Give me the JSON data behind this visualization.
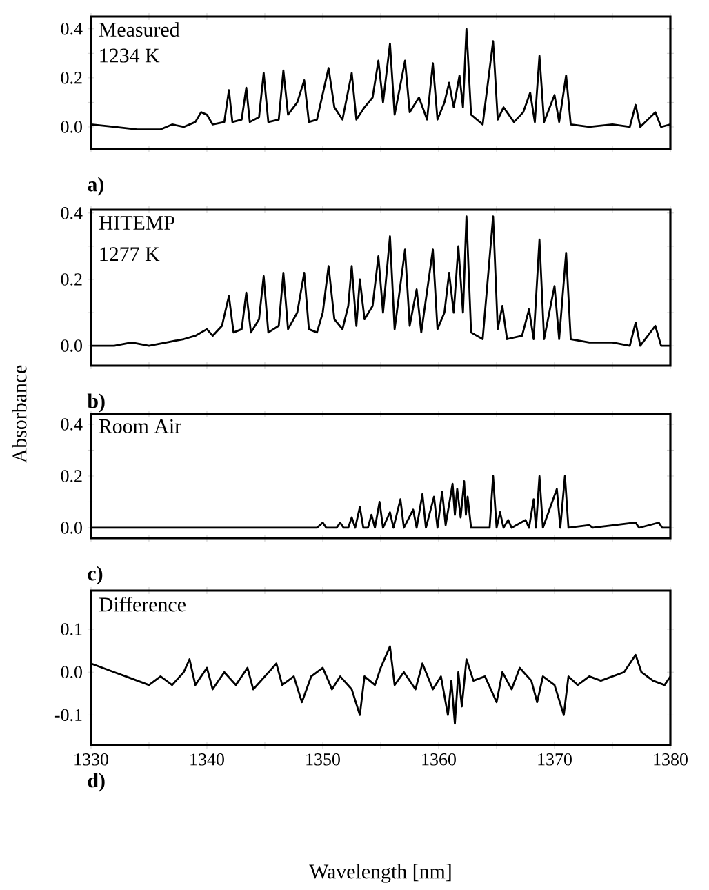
{
  "chart_data": [
    {
      "type": "line",
      "color": "#000000",
      "xlim": [
        1330,
        1380
      ],
      "ylim": [
        -0.09,
        0.45
      ],
      "tick_labels": "y",
      "xticks": [
        {
          "value": 1330,
          "label": null
        },
        {
          "value": 1335,
          "label": null
        },
        {
          "value": 1340,
          "label": null
        },
        {
          "value": 1345,
          "label": null
        },
        {
          "value": 1350,
          "label": null
        },
        {
          "value": 1355,
          "label": null
        },
        {
          "value": 1360,
          "label": null
        },
        {
          "value": 1365,
          "label": null
        },
        {
          "value": 1370,
          "label": null
        },
        {
          "value": 1375,
          "label": null
        },
        {
          "value": 1380,
          "label": null
        }
      ],
      "yticks": [
        {
          "value": 0,
          "label": "0.0"
        },
        {
          "value": 0.1,
          "label": null
        },
        {
          "value": 0.2,
          "label": "0.2"
        },
        {
          "value": 0.3,
          "label": null
        },
        {
          "value": 0.4,
          "label": "0.4"
        }
      ],
      "annotations": [
        "Measured",
        "1234 K",
        "a)"
      ],
      "x": [
        1330,
        1332,
        1334,
        1336,
        1337,
        1338,
        1339,
        1339.5,
        1340,
        1340.5,
        1341.5,
        1341.9,
        1342.2,
        1343,
        1343.4,
        1343.7,
        1344.5,
        1344.9,
        1345.3,
        1346.2,
        1346.6,
        1347,
        1347.8,
        1348.4,
        1348.8,
        1349.5,
        1350.5,
        1351,
        1351.7,
        1352.5,
        1352.9,
        1353.6,
        1354.3,
        1354.8,
        1355.2,
        1355.8,
        1356.2,
        1357.1,
        1357.5,
        1358.3,
        1359,
        1359.5,
        1359.9,
        1360.5,
        1360.9,
        1361.3,
        1361.8,
        1362.1,
        1362.4,
        1362.8,
        1363.8,
        1364.7,
        1365.1,
        1365.6,
        1366.5,
        1367.3,
        1367.9,
        1368.3,
        1368.7,
        1369.1,
        1370,
        1370.4,
        1371,
        1371.4,
        1373,
        1375,
        1376.5,
        1377,
        1377.4,
        1378.7,
        1379.2,
        1380
      ],
      "values": [
        0.01,
        0.0,
        -0.01,
        -0.01,
        0.01,
        0.0,
        0.02,
        0.06,
        0.05,
        0.01,
        0.02,
        0.15,
        0.02,
        0.03,
        0.16,
        0.02,
        0.04,
        0.22,
        0.02,
        0.03,
        0.23,
        0.05,
        0.1,
        0.19,
        0.02,
        0.03,
        0.24,
        0.08,
        0.03,
        0.22,
        0.03,
        0.08,
        0.12,
        0.27,
        0.1,
        0.34,
        0.05,
        0.27,
        0.06,
        0.12,
        0.03,
        0.26,
        0.03,
        0.1,
        0.18,
        0.08,
        0.21,
        0.08,
        0.4,
        0.05,
        0.01,
        0.35,
        0.03,
        0.08,
        0.02,
        0.06,
        0.14,
        0.02,
        0.29,
        0.02,
        0.13,
        0.02,
        0.21,
        0.01,
        0.0,
        0.01,
        0.0,
        0.09,
        0.0,
        0.06,
        0.0,
        0.01
      ]
    },
    {
      "type": "line",
      "color": "#000000",
      "xlim": [
        1330,
        1380
      ],
      "ylim": [
        -0.06,
        0.41
      ],
      "tick_labels": "y",
      "ylabel": "Absorbance",
      "xticks": [
        {
          "value": 1330,
          "label": null
        },
        {
          "value": 1335,
          "label": null
        },
        {
          "value": 1340,
          "label": null
        },
        {
          "value": 1345,
          "label": null
        },
        {
          "value": 1350,
          "label": null
        },
        {
          "value": 1355,
          "label": null
        },
        {
          "value": 1360,
          "label": null
        },
        {
          "value": 1365,
          "label": null
        },
        {
          "value": 1370,
          "label": null
        },
        {
          "value": 1375,
          "label": null
        },
        {
          "value": 1380,
          "label": null
        }
      ],
      "yticks": [
        {
          "value": 0,
          "label": "0.0"
        },
        {
          "value": 0.1,
          "label": null
        },
        {
          "value": 0.2,
          "label": "0.2"
        },
        {
          "value": 0.3,
          "label": null
        },
        {
          "value": 0.4,
          "label": "0.4"
        }
      ],
      "annotations": [
        "HITEMP",
        "1277 K",
        "b)"
      ],
      "x": [
        1330,
        1332,
        1333.5,
        1335,
        1336.5,
        1338,
        1339,
        1340,
        1340.5,
        1341.3,
        1341.9,
        1342.3,
        1343,
        1343.4,
        1343.8,
        1344.5,
        1344.9,
        1345.3,
        1346.2,
        1346.6,
        1347,
        1347.8,
        1348.4,
        1348.8,
        1349.5,
        1350,
        1350.5,
        1351,
        1351.7,
        1352.2,
        1352.5,
        1352.9,
        1353.2,
        1353.6,
        1354.3,
        1354.8,
        1355.2,
        1355.8,
        1356.2,
        1357.1,
        1357.5,
        1358.1,
        1358.5,
        1359.5,
        1359.9,
        1360.5,
        1360.9,
        1361.3,
        1361.7,
        1362.1,
        1362.4,
        1362.8,
        1363.8,
        1364.7,
        1365.1,
        1365.5,
        1365.9,
        1367.2,
        1367.8,
        1368.2,
        1368.7,
        1369.1,
        1370,
        1370.4,
        1371,
        1371.4,
        1373,
        1375,
        1376.5,
        1377,
        1377.4,
        1378.7,
        1379.2,
        1380
      ],
      "values": [
        0.0,
        0.0,
        0.01,
        0.0,
        0.01,
        0.02,
        0.03,
        0.05,
        0.03,
        0.06,
        0.15,
        0.04,
        0.05,
        0.16,
        0.04,
        0.08,
        0.21,
        0.04,
        0.06,
        0.22,
        0.05,
        0.1,
        0.22,
        0.05,
        0.04,
        0.1,
        0.24,
        0.08,
        0.05,
        0.12,
        0.24,
        0.06,
        0.2,
        0.08,
        0.12,
        0.27,
        0.1,
        0.33,
        0.05,
        0.29,
        0.06,
        0.17,
        0.04,
        0.29,
        0.05,
        0.1,
        0.22,
        0.1,
        0.3,
        0.1,
        0.39,
        0.04,
        0.02,
        0.39,
        0.05,
        0.12,
        0.02,
        0.03,
        0.11,
        0.02,
        0.32,
        0.02,
        0.18,
        0.02,
        0.28,
        0.02,
        0.01,
        0.01,
        0.0,
        0.07,
        0.0,
        0.06,
        0.0,
        0.0
      ]
    },
    {
      "type": "line",
      "color": "#000000",
      "xlim": [
        1330,
        1380
      ],
      "ylim": [
        -0.04,
        0.44
      ],
      "tick_labels": "y",
      "xticks": [
        {
          "value": 1330,
          "label": null
        },
        {
          "value": 1335,
          "label": null
        },
        {
          "value": 1340,
          "label": null
        },
        {
          "value": 1345,
          "label": null
        },
        {
          "value": 1350,
          "label": null
        },
        {
          "value": 1355,
          "label": null
        },
        {
          "value": 1360,
          "label": null
        },
        {
          "value": 1365,
          "label": null
        },
        {
          "value": 1370,
          "label": null
        },
        {
          "value": 1375,
          "label": null
        },
        {
          "value": 1380,
          "label": null
        }
      ],
      "yticks": [
        {
          "value": 0,
          "label": "0.0"
        },
        {
          "value": 0.1,
          "label": null
        },
        {
          "value": 0.2,
          "label": "0.2"
        },
        {
          "value": 0.3,
          "label": null
        },
        {
          "value": 0.4,
          "label": "0.4"
        }
      ],
      "annotations": [
        "Room Air",
        "c)"
      ],
      "x": [
        1330,
        1345,
        1349.5,
        1350,
        1350.3,
        1351.2,
        1351.5,
        1351.8,
        1352.2,
        1352.5,
        1352.8,
        1353.2,
        1353.5,
        1353.9,
        1354.2,
        1354.5,
        1354.9,
        1355.2,
        1355.8,
        1356.1,
        1356.7,
        1357.0,
        1357.8,
        1358.1,
        1358.6,
        1358.9,
        1359.6,
        1359.9,
        1360.3,
        1360.6,
        1361.2,
        1361.4,
        1361.6,
        1361.9,
        1362.2,
        1362.35,
        1362.5,
        1362.8,
        1364.4,
        1364.7,
        1365.0,
        1365.3,
        1365.6,
        1366,
        1366.3,
        1367.5,
        1367.8,
        1368.2,
        1368.4,
        1368.7,
        1369.0,
        1370.2,
        1370.5,
        1370.9,
        1371.2,
        1373,
        1373.3,
        1377,
        1377.3,
        1379,
        1379.3,
        1380
      ],
      "values": [
        0.0,
        0.0,
        0.0,
        0.02,
        0.0,
        0.0,
        0.02,
        0.0,
        0.0,
        0.04,
        0.0,
        0.08,
        0.0,
        0.0,
        0.05,
        0.0,
        0.1,
        0.0,
        0.06,
        0.0,
        0.11,
        0.0,
        0.07,
        0.0,
        0.13,
        0.0,
        0.12,
        0.0,
        0.14,
        0.01,
        0.17,
        0.05,
        0.15,
        0.04,
        0.18,
        0.05,
        0.12,
        0.0,
        0.0,
        0.2,
        0.0,
        0.06,
        0.0,
        0.03,
        0.0,
        0.03,
        0.0,
        0.11,
        0.0,
        0.2,
        0.0,
        0.15,
        0.0,
        0.2,
        0.0,
        0.01,
        0.0,
        0.02,
        0.0,
        0.02,
        0.0,
        0.0
      ]
    },
    {
      "type": "line",
      "color": "#000000",
      "xlim": [
        1330,
        1380
      ],
      "ylim": [
        -0.17,
        0.19
      ],
      "xlabel": "Wavelength [nm]",
      "xticks": [
        1330,
        {
          "value": 1335,
          "label": null
        },
        1340,
        {
          "value": 1345,
          "label": null
        },
        1350,
        {
          "value": 1355,
          "label": null
        },
        1360,
        {
          "value": 1365,
          "label": null
        },
        1370,
        {
          "value": 1375,
          "label": null
        },
        1380
      ],
      "yticks": [
        {
          "value": -0.1,
          "label": "-0.1"
        },
        {
          "value": 0,
          "label": "0.0"
        },
        {
          "value": 0.1,
          "label": "0.1"
        }
      ],
      "annotations": [
        "Difference",
        "d)"
      ],
      "x": [
        1330,
        1331,
        1332,
        1333,
        1334,
        1335,
        1336,
        1337,
        1338,
        1338.5,
        1339,
        1340,
        1340.5,
        1341.5,
        1342.5,
        1343.5,
        1344,
        1345,
        1346,
        1346.5,
        1347.5,
        1348.2,
        1349,
        1350,
        1350.8,
        1351.5,
        1352.5,
        1353.2,
        1353.6,
        1354.5,
        1355,
        1355.8,
        1356.2,
        1357,
        1358,
        1358.6,
        1359.5,
        1360.2,
        1360.8,
        1361.1,
        1361.4,
        1361.7,
        1362,
        1362.4,
        1363,
        1364,
        1365,
        1365.5,
        1366.3,
        1367,
        1368,
        1368.5,
        1369,
        1370,
        1370.8,
        1371.2,
        1372,
        1373,
        1374,
        1375,
        1376,
        1377,
        1377.5,
        1378.5,
        1379.5,
        1380
      ],
      "values": [
        0.02,
        0.01,
        0.0,
        -0.01,
        -0.02,
        -0.03,
        -0.01,
        -0.03,
        0.0,
        0.03,
        -0.03,
        0.01,
        -0.04,
        0.0,
        -0.03,
        0.01,
        -0.04,
        -0.01,
        0.02,
        -0.03,
        -0.01,
        -0.07,
        -0.01,
        0.01,
        -0.04,
        -0.01,
        -0.04,
        -0.1,
        -0.01,
        -0.03,
        0.01,
        0.06,
        -0.03,
        0.0,
        -0.04,
        0.02,
        -0.04,
        -0.01,
        -0.1,
        -0.02,
        -0.12,
        0.0,
        -0.08,
        0.03,
        -0.02,
        -0.01,
        -0.07,
        0.0,
        -0.04,
        0.01,
        -0.02,
        -0.07,
        -0.01,
        -0.03,
        -0.1,
        -0.01,
        -0.03,
        -0.01,
        -0.02,
        -0.01,
        0.0,
        0.04,
        0.0,
        -0.02,
        -0.03,
        -0.01
      ]
    }
  ]
}
